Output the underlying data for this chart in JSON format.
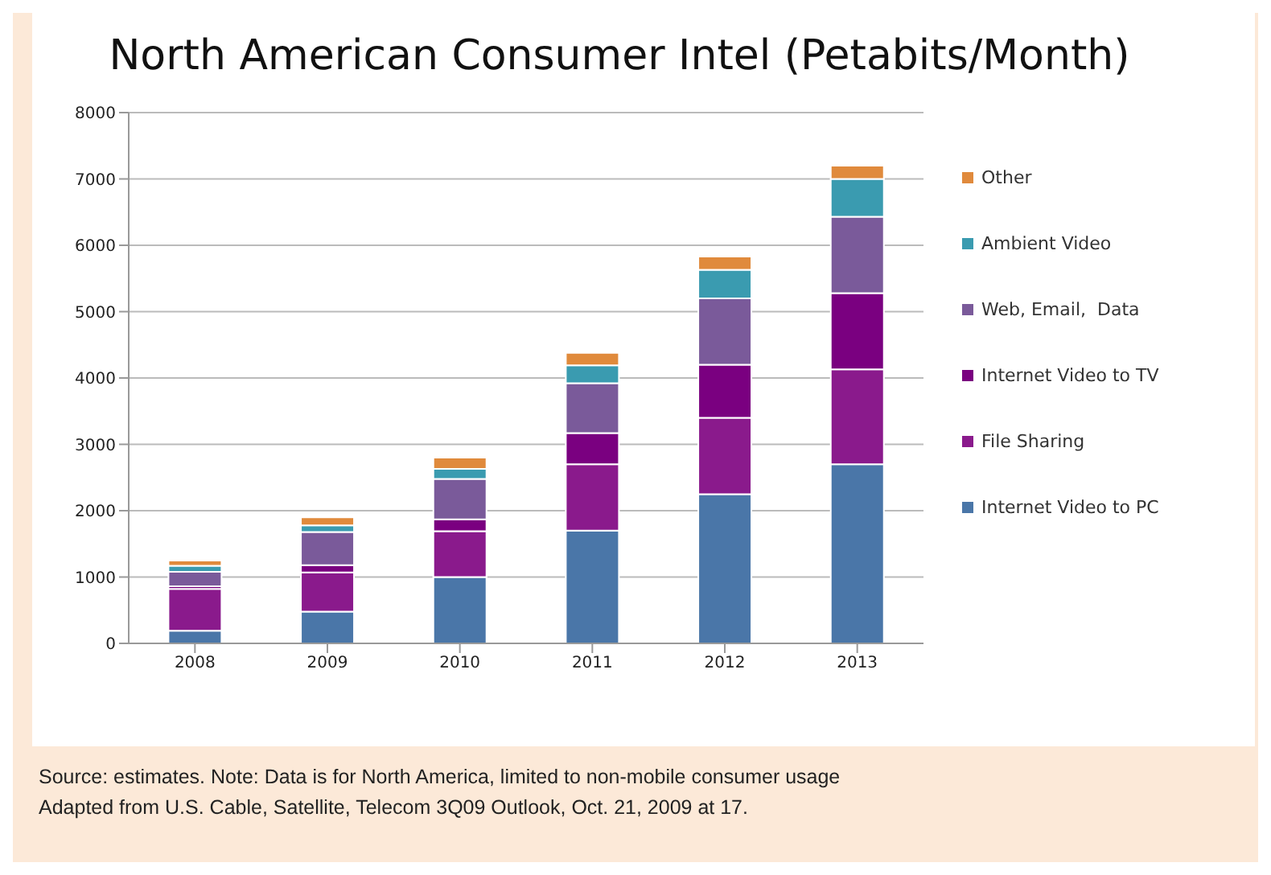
{
  "chart_data": {
    "type": "bar",
    "title": "North American Consumer Intel (Petabits/Month)",
    "categories": [
      "2008",
      "2009",
      "2010",
      "2011",
      "2012",
      "2013"
    ],
    "stacked": true,
    "series": [
      {
        "name": "Internet Video to PC",
        "color": "#4a76a8",
        "values": [
          190,
          480,
          1000,
          1700,
          2250,
          2700
        ]
      },
      {
        "name": "File Sharing",
        "color": "#8a1a8c",
        "values": [
          630,
          590,
          690,
          1000,
          1150,
          1430
        ]
      },
      {
        "name": "Internet Video to TV",
        "color": "#7a0080",
        "values": [
          40,
          110,
          180,
          470,
          800,
          1150
        ]
      },
      {
        "name": "Web, Email,  Data",
        "color": "#7a5a9a",
        "values": [
          220,
          500,
          610,
          750,
          1000,
          1150
        ]
      },
      {
        "name": "Ambient Video",
        "color": "#3a9bb0",
        "values": [
          90,
          100,
          150,
          270,
          430,
          570
        ]
      },
      {
        "name": "Other",
        "color": "#e08a3c",
        "values": [
          80,
          120,
          170,
          190,
          200,
          200
        ]
      }
    ],
    "ylim": [
      0,
      8000
    ],
    "yticks": [
      0,
      1000,
      2000,
      3000,
      4000,
      5000,
      6000,
      7000,
      8000
    ],
    "grid": "y",
    "legend": "right",
    "annotations": [
      "Source: estimates. Note: Data is for North America, limited to non-mobile consumer usage",
      "Adapted from U.S. Cable, Satellite, Telecom 3Q09 Outlook, Oct. 21, 2009 at 17."
    ]
  }
}
